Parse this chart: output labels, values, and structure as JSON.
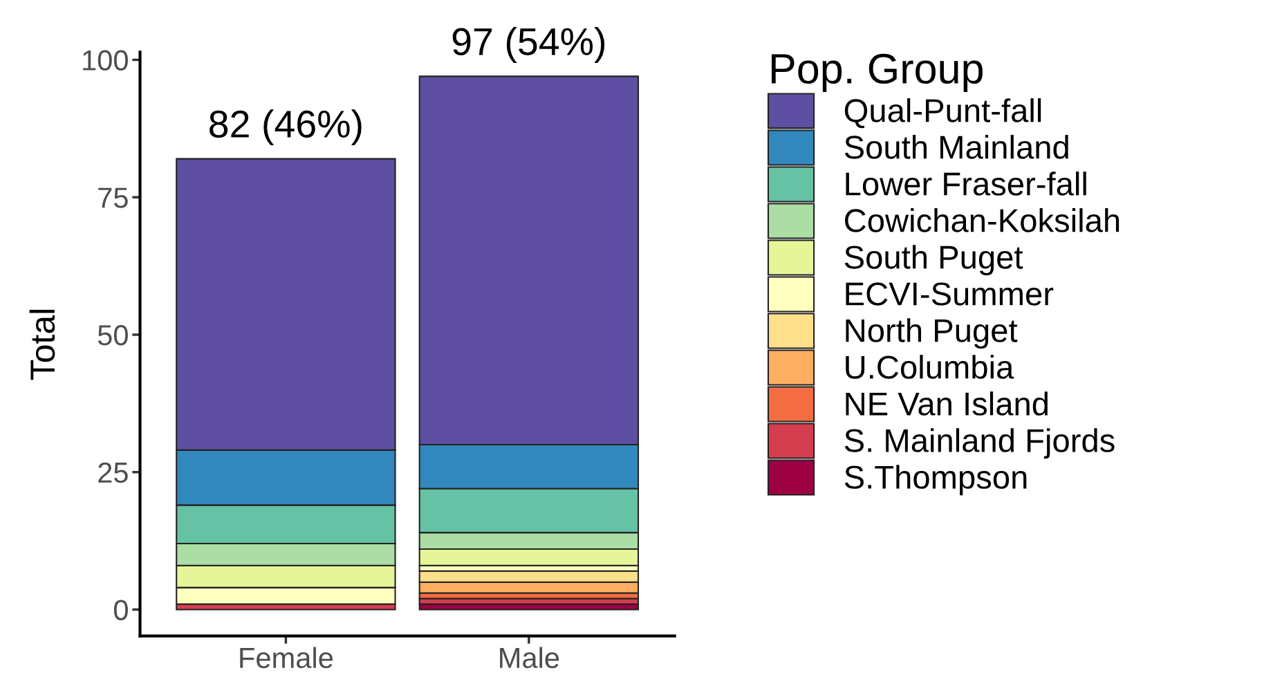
{
  "chart_data": {
    "type": "bar",
    "stacked": true,
    "ylabel": "Total",
    "legend_title": "Pop. Group",
    "legend": "right",
    "grid": false,
    "categories": [
      "Female",
      "Male"
    ],
    "ylim": [
      -4.8,
      101.4
    ],
    "yticks": [
      0,
      25,
      50,
      75,
      100
    ],
    "series": [
      {
        "name": "S.Thompson",
        "color": "#9e0142",
        "values": [
          0,
          1
        ]
      },
      {
        "name": "S. Mainland Fjords",
        "color": "#d53e4f",
        "values": [
          1,
          1
        ]
      },
      {
        "name": "NE Van Island",
        "color": "#f46d43",
        "values": [
          0,
          1
        ]
      },
      {
        "name": "U.Columbia",
        "color": "#fdae61",
        "values": [
          0,
          2
        ]
      },
      {
        "name": "North Puget",
        "color": "#fee08b",
        "values": [
          0,
          2
        ]
      },
      {
        "name": "ECVI-Summer",
        "color": "#ffffbf",
        "values": [
          3,
          1
        ]
      },
      {
        "name": "South Puget",
        "color": "#e6f598",
        "values": [
          4,
          3
        ]
      },
      {
        "name": "Cowichan-Koksilah",
        "color": "#abdda4",
        "values": [
          4,
          3
        ]
      },
      {
        "name": "Lower Fraser-fall",
        "color": "#66c2a5",
        "values": [
          7,
          8
        ]
      },
      {
        "name": "South Mainland",
        "color": "#3288bd",
        "values": [
          10,
          8
        ]
      },
      {
        "name": "Qual-Punt-fall",
        "color": "#5e4fa2",
        "values": [
          53,
          67
        ]
      }
    ],
    "annotations": [
      {
        "text": "82 (46%)",
        "x": "Female",
        "y": 82
      },
      {
        "text": "97 (54%)",
        "x": "Male",
        "y": 97
      }
    ]
  }
}
